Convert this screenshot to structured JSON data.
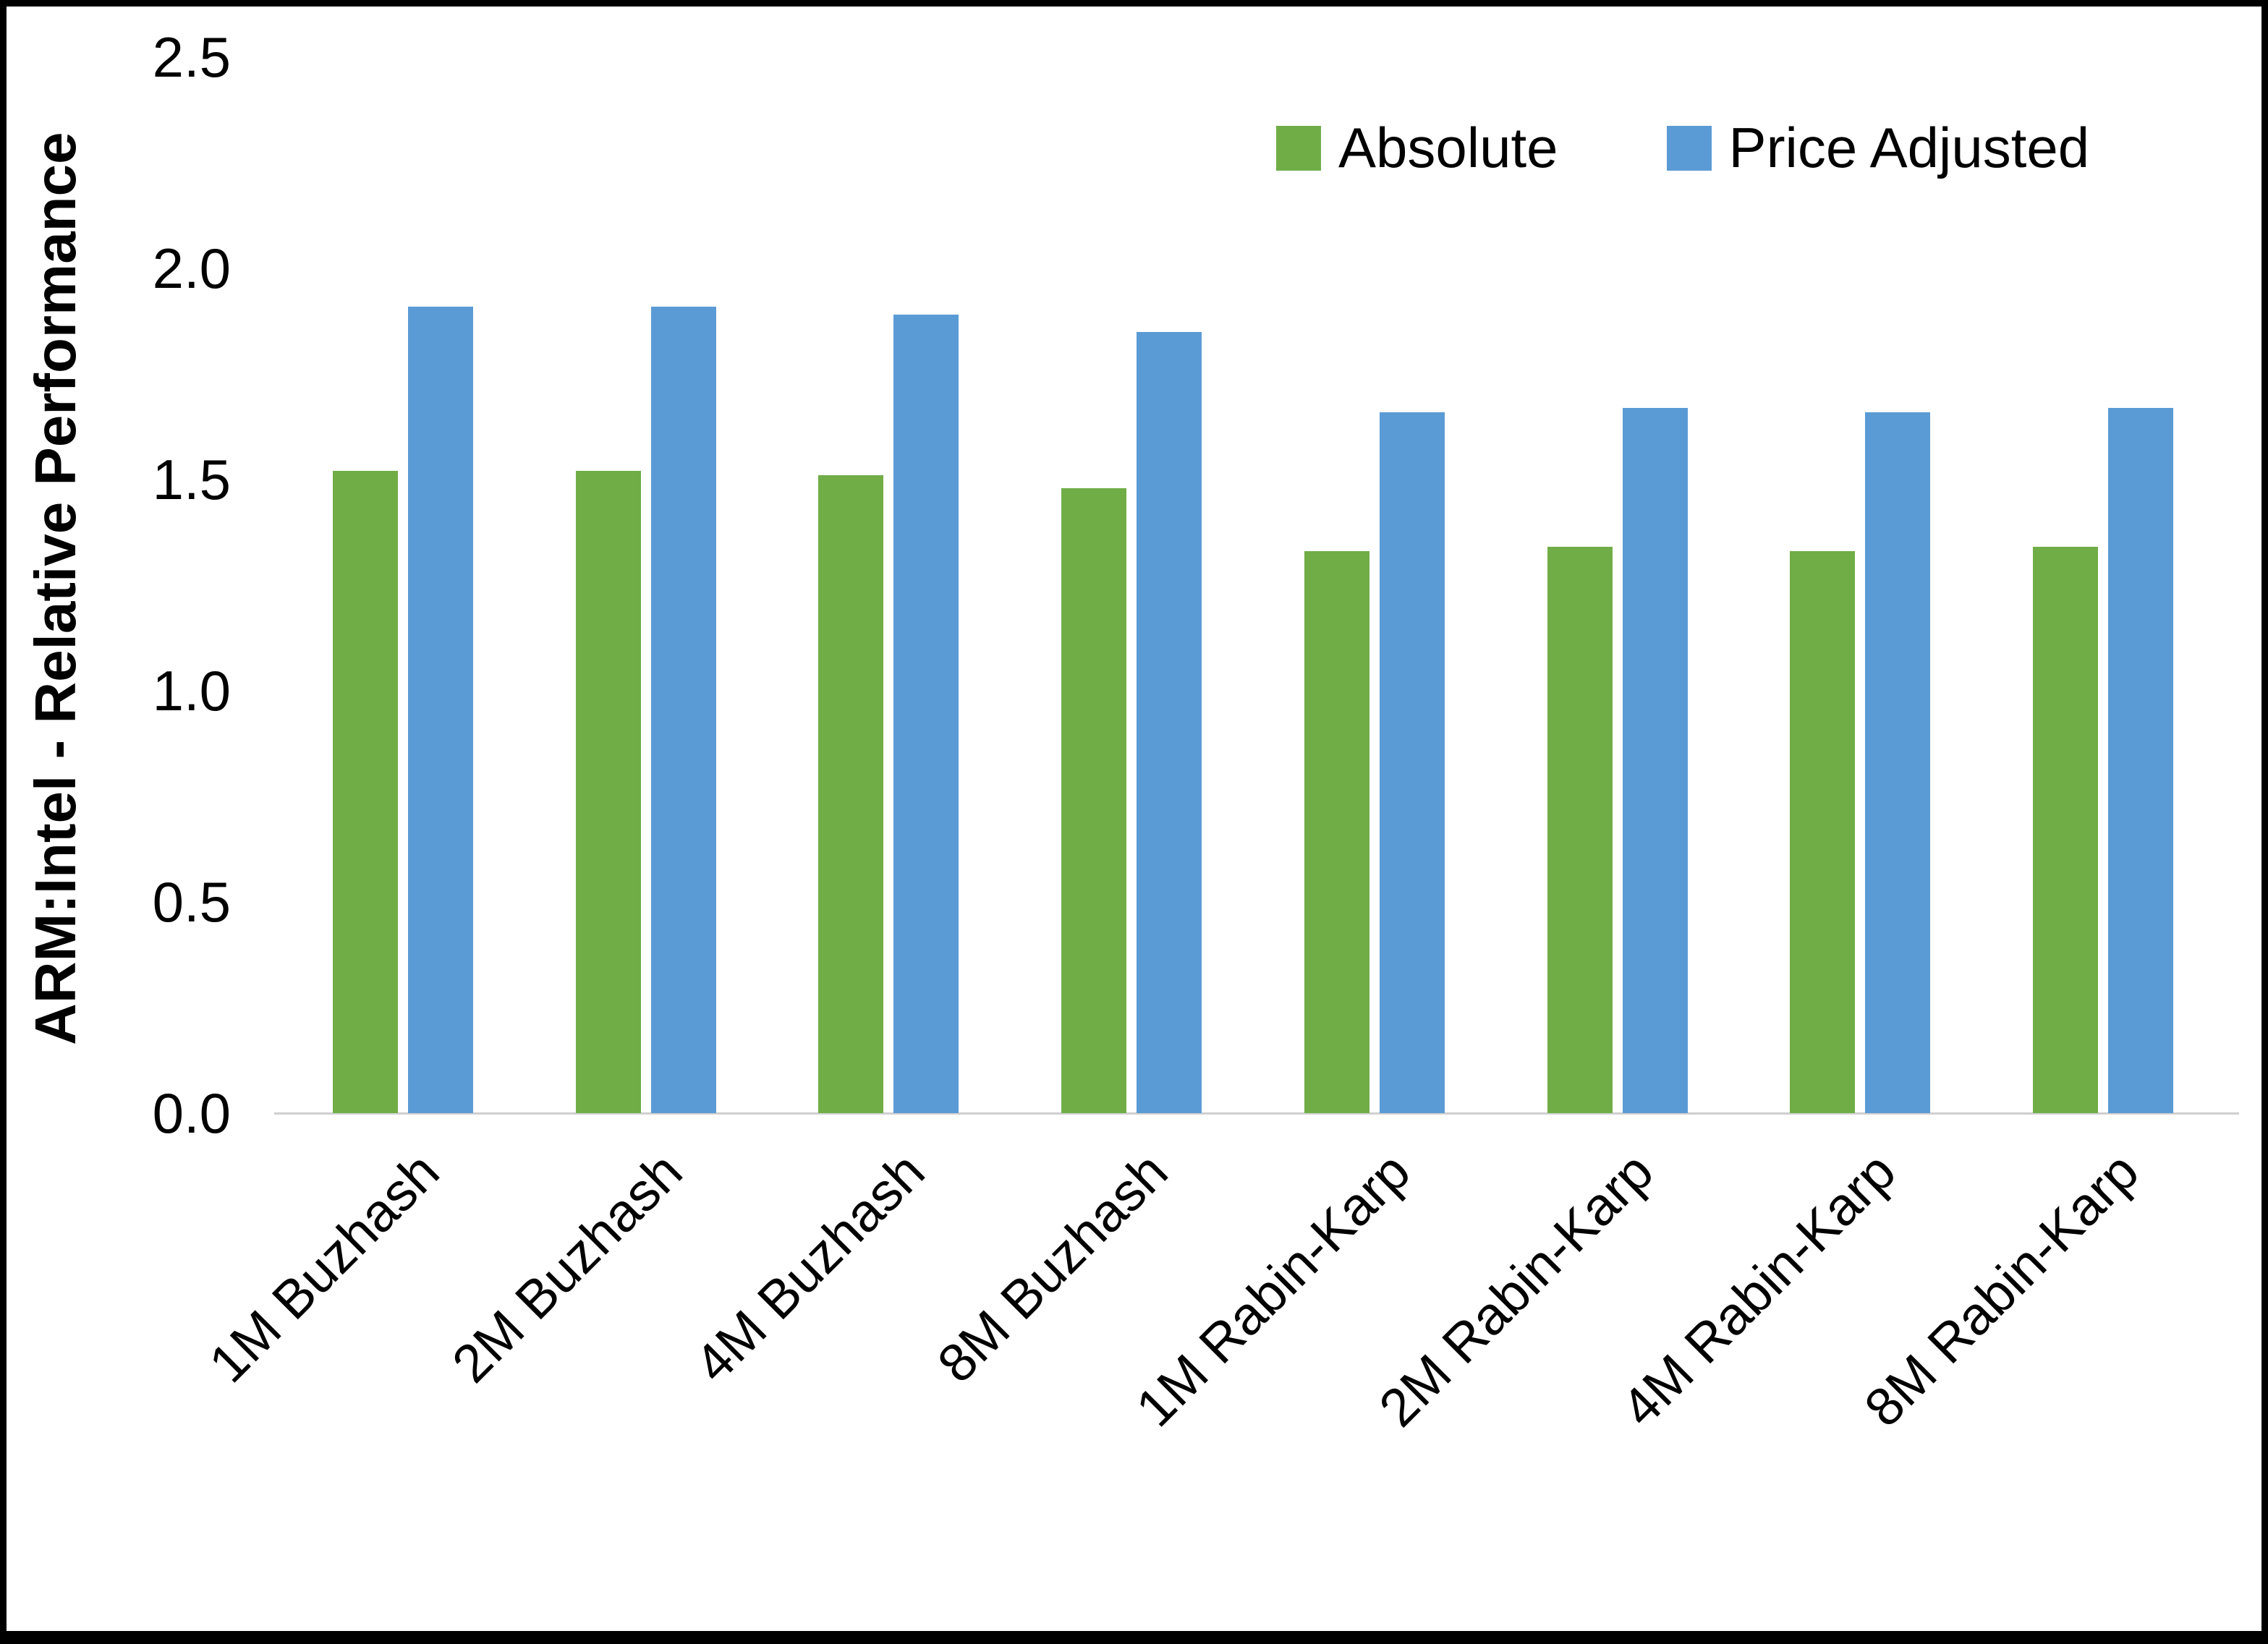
{
  "chart_data": {
    "type": "bar",
    "title": "",
    "xlabel": "",
    "ylabel": "ARM:Intel - Relative Performance",
    "ylim": [
      0,
      2.5
    ],
    "yticks": [
      "0.0",
      "0.5",
      "1.0",
      "1.5",
      "2.0",
      "2.5"
    ],
    "ytick_values": [
      0.0,
      0.5,
      1.0,
      1.5,
      2.0,
      2.5
    ],
    "grid": false,
    "legend_position": "top-right",
    "categories": [
      "1M Buzhash",
      "2M Buzhash",
      "4M Buzhash",
      "8M Buzhash",
      "1M Rabin-Karp",
      "2M Rabin-Karp",
      "4M Rabin-Karp",
      "8M Rabin-Karp"
    ],
    "series": [
      {
        "name": "Absolute",
        "color": "#70AD47",
        "values": [
          1.52,
          1.52,
          1.51,
          1.48,
          1.33,
          1.34,
          1.33,
          1.34
        ]
      },
      {
        "name": "Price Adjusted",
        "color": "#5B9BD5",
        "values": [
          1.91,
          1.91,
          1.89,
          1.85,
          1.66,
          1.67,
          1.66,
          1.67
        ]
      }
    ]
  }
}
